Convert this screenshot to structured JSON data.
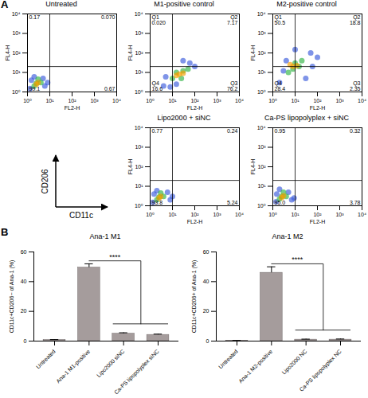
{
  "panels": [
    "A",
    "B"
  ],
  "axis_key": {
    "x": "CD11c",
    "y": "CD206"
  },
  "chart_data": [
    {
      "type": "scatter",
      "title": "Untreated",
      "x_label": "FL2-H",
      "y_label": "FL4-H",
      "log": true,
      "xlim": [
        1,
        10000
      ],
      "ylim": [
        1,
        10000
      ],
      "xticks": [
        {
          "value": 1,
          "label": "10⁰"
        },
        {
          "value": 10,
          "label": "10¹"
        },
        {
          "value": 100,
          "label": "10²"
        },
        {
          "value": 1000,
          "label": "10³"
        },
        {
          "value": 10000,
          "label": "10⁴"
        }
      ],
      "yticks": [
        {
          "value": 1,
          "label": "10⁰"
        },
        {
          "value": 10,
          "label": "10¹"
        },
        {
          "value": 100,
          "label": "10²"
        },
        {
          "value": 1000,
          "label": "10³"
        },
        {
          "value": 10000,
          "label": "10⁴"
        }
      ],
      "x": [
        1.3,
        6,
        2,
        5,
        1.5,
        8,
        2,
        4,
        3,
        2.5,
        3,
        2.5
      ],
      "y": [
        1.5,
        2,
        6,
        5,
        4,
        3,
        2,
        3,
        4.5,
        2.8,
        3,
        2.5
      ],
      "colors": [
        "#3b5bdb",
        "#3b5bdb",
        "#3b5bdb",
        "#3b5bdb",
        "#3b5bdb",
        "#3b5bdb",
        "#2fb344",
        "#2fb344",
        "#2fb344",
        "#2fb344",
        "#f59f00",
        "#f59f00"
      ],
      "quadrant_gate": [
        10,
        20
      ],
      "quadrant_values": [
        0.17,
        0.07,
        0.67,
        99.1
      ],
      "quadrant_value_labels": [
        "0.17",
        "0.070",
        "0.67",
        "99.1"
      ]
    },
    {
      "type": "scatter",
      "title": "M1-positive control",
      "x_label": "FL2-H",
      "y_label": "FL4-H",
      "log": true,
      "xlim": [
        1,
        10000
      ],
      "ylim": [
        1,
        10000
      ],
      "xticks": [
        {
          "value": 1,
          "label": "10⁰"
        },
        {
          "value": 10,
          "label": "10¹"
        },
        {
          "value": 100,
          "label": "10²"
        },
        {
          "value": 1000,
          "label": "10³"
        },
        {
          "value": 10000,
          "label": "10⁴"
        }
      ],
      "yticks": [
        {
          "value": 1,
          "label": "10⁰"
        },
        {
          "value": 10,
          "label": "10¹"
        },
        {
          "value": 100,
          "label": "10²"
        },
        {
          "value": 1000,
          "label": "10³"
        },
        {
          "value": 10000,
          "label": "10⁴"
        }
      ],
      "x": [
        4,
        8,
        60,
        100,
        30,
        5,
        15,
        10,
        30,
        50,
        15,
        25,
        20,
        15,
        30
      ],
      "y": [
        2,
        1.8,
        30,
        20,
        40,
        6,
        2.5,
        5,
        12,
        15,
        10,
        5,
        8,
        7,
        9
      ],
      "colors": [
        "#3b5bdb",
        "#3b5bdb",
        "#3b5bdb",
        "#3b5bdb",
        "#3b5bdb",
        "#3b5bdb",
        "#3b5bdb",
        "#2fb344",
        "#2fb344",
        "#2fb344",
        "#2fb344",
        "#2fb344",
        "#f59f00",
        "#f59f00",
        "#f59f00"
      ],
      "quadrant_gate": [
        10,
        20
      ],
      "quadrant_names": [
        "Q1",
        "Q2",
        "Q3",
        "Q4"
      ],
      "quadrant_values": [
        0.02,
        7.17,
        76.2,
        16.6
      ],
      "quadrant_value_labels": [
        "0.020",
        "7.17",
        "76.2",
        "16.6"
      ]
    },
    {
      "type": "scatter",
      "title": "M2-positive control",
      "x_label": "FL2-H",
      "y_label": "FL4-H",
      "log": true,
      "xlim": [
        1,
        10000
      ],
      "ylim": [
        1,
        10000
      ],
      "xticks": [
        {
          "value": 1,
          "label": "10⁰"
        },
        {
          "value": 10,
          "label": "10¹"
        },
        {
          "value": 100,
          "label": "10²"
        },
        {
          "value": 1000,
          "label": "10³"
        },
        {
          "value": 10000,
          "label": "10⁴"
        }
      ],
      "yticks": [
        {
          "value": 1,
          "label": "10⁰"
        },
        {
          "value": 10,
          "label": "10¹"
        },
        {
          "value": 100,
          "label": "10²"
        },
        {
          "value": 1000,
          "label": "10³"
        },
        {
          "value": 10000,
          "label": "10⁴"
        }
      ],
      "x": [
        2,
        3,
        50,
        100,
        10,
        4,
        30,
        60,
        5,
        10,
        20,
        8,
        15,
        8,
        6,
        12
      ],
      "y": [
        3,
        12,
        100,
        60,
        150,
        40,
        5,
        20,
        10,
        30,
        40,
        15,
        20,
        20,
        25,
        22
      ],
      "colors": [
        "#3b5bdb",
        "#3b5bdb",
        "#3b5bdb",
        "#3b5bdb",
        "#3b5bdb",
        "#3b5bdb",
        "#3b5bdb",
        "#3b5bdb",
        "#2fb344",
        "#2fb344",
        "#2fb344",
        "#2fb344",
        "#2fb344",
        "#f59f00",
        "#f59f00",
        "#f59f00"
      ],
      "quadrant_gate": [
        10,
        20
      ],
      "quadrant_names": [
        "Q1",
        "Q2",
        "Q3",
        "Q4"
      ],
      "quadrant_values": [
        50.5,
        18.8,
        2.35,
        28.4
      ],
      "quadrant_value_labels": [
        "50.5",
        "18.8",
        "2.35",
        "28.4"
      ]
    },
    {
      "type": "scatter",
      "title": "Lipo2000 + siNC",
      "x_label": "FL2-H",
      "y_label": "FL4-H",
      "log": true,
      "xlim": [
        1,
        10000
      ],
      "ylim": [
        1,
        10000
      ],
      "xticks": [
        {
          "value": 1,
          "label": "10⁰"
        },
        {
          "value": 10,
          "label": "10¹"
        },
        {
          "value": 100,
          "label": "10²"
        },
        {
          "value": 1000,
          "label": "10³"
        },
        {
          "value": 10000,
          "label": "10⁴"
        }
      ],
      "yticks": [
        {
          "value": 1,
          "label": "10⁰"
        },
        {
          "value": 10,
          "label": "10¹"
        },
        {
          "value": 100,
          "label": "10²"
        },
        {
          "value": 1000,
          "label": "10³"
        },
        {
          "value": 10000,
          "label": "10⁴"
        }
      ],
      "x": [
        1.3,
        8,
        2,
        6,
        1.5,
        10,
        2,
        4,
        3,
        2.5,
        3,
        2.5
      ],
      "y": [
        1.5,
        2,
        6,
        5,
        4,
        3,
        2,
        3,
        4.5,
        2.8,
        3,
        2.5
      ],
      "colors": [
        "#3b5bdb",
        "#3b5bdb",
        "#3b5bdb",
        "#3b5bdb",
        "#3b5bdb",
        "#3b5bdb",
        "#2fb344",
        "#2fb344",
        "#2fb344",
        "#2fb344",
        "#f59f00",
        "#f59f00"
      ],
      "quadrant_gate": [
        10,
        20
      ],
      "quadrant_values": [
        0.77,
        0.24,
        5.24,
        93.8
      ],
      "quadrant_value_labels": [
        "0.77",
        "0.24",
        "5.24",
        "93.8"
      ]
    },
    {
      "type": "scatter",
      "title": "Ca-PS lipopolyplex + siNC",
      "x_label": "FL2-H",
      "y_label": "FL4-H",
      "log": true,
      "xlim": [
        1,
        10000
      ],
      "ylim": [
        1,
        10000
      ],
      "xticks": [
        {
          "value": 1,
          "label": "10⁰"
        },
        {
          "value": 10,
          "label": "10¹"
        },
        {
          "value": 100,
          "label": "10²"
        },
        {
          "value": 1000,
          "label": "10³"
        },
        {
          "value": 10000,
          "label": "10⁴"
        }
      ],
      "yticks": [
        {
          "value": 1,
          "label": "10⁰"
        },
        {
          "value": 10,
          "label": "10¹"
        },
        {
          "value": 100,
          "label": "10²"
        },
        {
          "value": 1000,
          "label": "10³"
        },
        {
          "value": 10000,
          "label": "10⁴"
        }
      ],
      "x": [
        1.4,
        7,
        2,
        5,
        1.5,
        9,
        2,
        4,
        3,
        2.5,
        3,
        2.5
      ],
      "y": [
        1.6,
        2,
        7,
        5,
        4,
        2.5,
        2.2,
        3,
        5,
        3,
        3.2,
        2.6
      ],
      "colors": [
        "#3b5bdb",
        "#3b5bdb",
        "#3b5bdb",
        "#3b5bdb",
        "#3b5bdb",
        "#3b5bdb",
        "#2fb344",
        "#2fb344",
        "#2fb344",
        "#2fb344",
        "#f59f00",
        "#f59f00"
      ],
      "quadrant_gate": [
        10,
        20
      ],
      "quadrant_values": [
        0.95,
        0.32,
        3.78,
        95.0
      ],
      "quadrant_value_labels": [
        "0.95",
        "0.32",
        "3.78",
        "95.0"
      ]
    },
    {
      "type": "bar",
      "title": "Ana-1 M1",
      "y_label": "CD11c+CD206− of Ana-1 (%)",
      "categories": [
        "Untreated",
        "Ana-1 M1-positive",
        "Lipo2000 siNC",
        "Ca-PS lipopolyplex siNC"
      ],
      "values": [
        0.8,
        49.5,
        5.0,
        4.2
      ],
      "errors": [
        0.2,
        2.5,
        0.6,
        0.5
      ],
      "color": "#a59c9c",
      "ylim": [
        0,
        60
      ],
      "yticks": [
        0,
        20,
        40,
        60
      ],
      "annotations": [
        {
          "text": "****",
          "from": "Ana-1 M1-positive",
          "to": [
            "Lipo2000 siNC",
            "Ca-PS lipopolyplex siNC"
          ]
        }
      ]
    },
    {
      "type": "bar",
      "title": "Ana-1 M2",
      "y_label": "CD11c+CD206+ of Ana-1 (%)",
      "categories": [
        "Untreated",
        "Ana-1 M2-positive",
        "Lipo2000 NC",
        "Ca-PS lipopolyplex NC"
      ],
      "values": [
        0.3,
        46.0,
        1.0,
        1.0
      ],
      "errors": [
        0.1,
        4.0,
        0.3,
        0.4
      ],
      "color": "#a59c9c",
      "ylim": [
        0,
        60
      ],
      "yticks": [
        0,
        20,
        40,
        60
      ],
      "annotations": [
        {
          "text": "****",
          "from": "Ana-1 M2-positive",
          "to": [
            "Lipo2000 NC",
            "Ca-PS lipopolyplex NC"
          ]
        }
      ]
    }
  ]
}
